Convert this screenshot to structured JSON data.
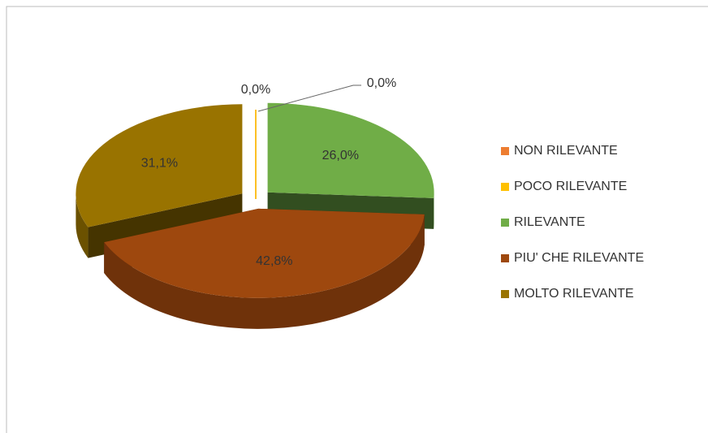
{
  "chart_data": {
    "type": "pie3d",
    "categories": [
      "NON RILEVANTE",
      "POCO RILEVANTE",
      "RILEVANTE",
      "PIU' CHE RILEVANTE",
      "MOLTO RILEVANTE"
    ],
    "values": [
      0,
      0,
      26.0,
      42.8,
      31.1
    ],
    "value_labels": [
      "0,0%",
      "0,0%",
      "26,0%",
      "42,8%",
      "31,1%"
    ],
    "colors": [
      "#ed7d31",
      "#ffc000",
      "#70ad47",
      "#9e480e",
      "#997300"
    ],
    "legend": "right"
  }
}
